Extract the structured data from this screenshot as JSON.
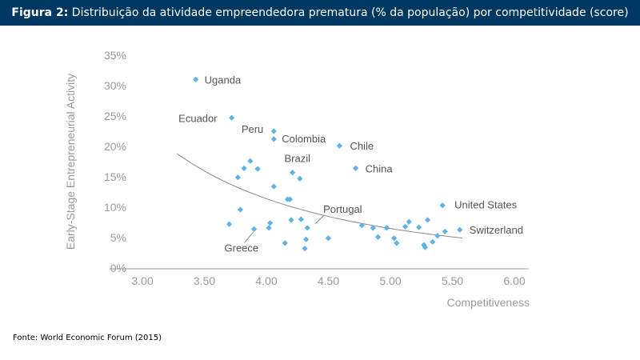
{
  "header": {
    "figure_label": "Figura 2:",
    "title": "Distribuição da atividade empreendedora prematura (% da população) por competitividade (score)"
  },
  "source": "Fonte: World Economic Forum (2015)",
  "chart_data": {
    "type": "scatter",
    "title": "",
    "xlabel": "Competitiveness",
    "ylabel": "Early-Stage Entrepreneurial Activity",
    "xlim": [
      3.0,
      6.0
    ],
    "ylim": [
      0,
      35
    ],
    "x_ticks": [
      "3.00",
      "3.50",
      "4.00",
      "4.50",
      "5.00",
      "5.50",
      "6.00"
    ],
    "y_ticks": [
      "0%",
      "5%",
      "10%",
      "15%",
      "20%",
      "25%",
      "30%",
      "35%"
    ],
    "grid": false,
    "legend": "none",
    "marker_color": "#5bb4e5",
    "trendline": {
      "type": "power",
      "color": "#8a8a8a",
      "x_range": [
        3.28,
        5.58
      ],
      "a": 18.8,
      "x0": 3.28,
      "b": -2.52
    },
    "points": [
      {
        "x": 3.43,
        "y": 31.0,
        "label": "Uganda"
      },
      {
        "x": 3.72,
        "y": 24.7,
        "label": "Ecuador"
      },
      {
        "x": 4.06,
        "y": 22.5,
        "label": "Peru"
      },
      {
        "x": 4.06,
        "y": 21.2,
        "label": "Colombia"
      },
      {
        "x": 4.59,
        "y": 20.1,
        "label": "Chile"
      },
      {
        "x": 4.72,
        "y": 16.4,
        "label": "China"
      },
      {
        "x": 4.21,
        "y": 15.7,
        "label": "Brazil"
      },
      {
        "x": 5.42,
        "y": 10.3,
        "label": "United States"
      },
      {
        "x": 5.56,
        "y": 6.3,
        "label": "Switzerland"
      },
      {
        "x": 3.9,
        "y": 6.4,
        "label": "Greece"
      },
      {
        "x": 4.33,
        "y": 6.6,
        "label": "Portugal"
      },
      {
        "x": 3.87,
        "y": 17.6
      },
      {
        "x": 3.82,
        "y": 16.4
      },
      {
        "x": 3.93,
        "y": 16.3
      },
      {
        "x": 3.77,
        "y": 14.9
      },
      {
        "x": 4.27,
        "y": 14.7
      },
      {
        "x": 4.06,
        "y": 13.4
      },
      {
        "x": 4.17,
        "y": 11.3
      },
      {
        "x": 4.19,
        "y": 11.3
      },
      {
        "x": 3.79,
        "y": 9.6
      },
      {
        "x": 3.7,
        "y": 7.2
      },
      {
        "x": 4.03,
        "y": 7.4
      },
      {
        "x": 4.02,
        "y": 6.6
      },
      {
        "x": 4.2,
        "y": 7.9
      },
      {
        "x": 4.28,
        "y": 8.0
      },
      {
        "x": 4.15,
        "y": 4.1
      },
      {
        "x": 4.32,
        "y": 4.7
      },
      {
        "x": 4.31,
        "y": 3.2
      },
      {
        "x": 4.5,
        "y": 4.9
      },
      {
        "x": 4.77,
        "y": 7.0
      },
      {
        "x": 4.86,
        "y": 6.6
      },
      {
        "x": 4.97,
        "y": 6.6
      },
      {
        "x": 4.9,
        "y": 5.1
      },
      {
        "x": 5.03,
        "y": 4.9
      },
      {
        "x": 5.05,
        "y": 4.1
      },
      {
        "x": 5.12,
        "y": 6.8
      },
      {
        "x": 5.15,
        "y": 7.6
      },
      {
        "x": 5.23,
        "y": 6.7
      },
      {
        "x": 5.3,
        "y": 7.9
      },
      {
        "x": 5.27,
        "y": 3.8
      },
      {
        "x": 5.28,
        "y": 3.4
      },
      {
        "x": 5.34,
        "y": 4.3
      },
      {
        "x": 5.38,
        "y": 5.3
      },
      {
        "x": 5.44,
        "y": 6.0
      }
    ]
  }
}
